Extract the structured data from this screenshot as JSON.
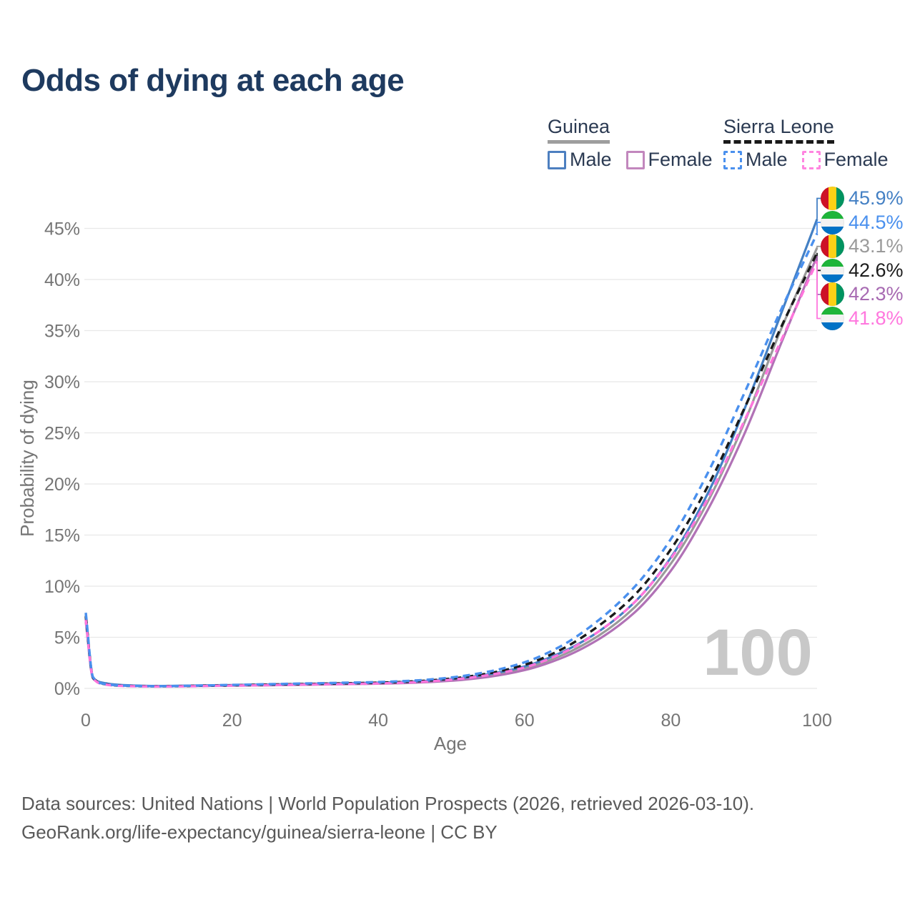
{
  "title": "Odds of dying at each age",
  "legend": {
    "groups": [
      {
        "name": "Guinea",
        "dashed": false,
        "underline_color": "#9e9e9e",
        "items": [
          {
            "label": "Male",
            "color": "#4d7fc0"
          },
          {
            "label": "Female",
            "color": "#c287bd"
          }
        ]
      },
      {
        "name": "Sierra Leone",
        "dashed": true,
        "underline_color": "#1a1a1a",
        "items": [
          {
            "label": "Male",
            "color": "#4a90ee"
          },
          {
            "label": "Female",
            "color": "#ff85e0"
          }
        ]
      }
    ]
  },
  "chart_data": {
    "type": "line",
    "title": "Odds of dying at each age",
    "xlabel": "Age",
    "ylabel": "Probability of dying",
    "x_ticks": [
      0,
      20,
      40,
      60,
      80,
      100
    ],
    "y_ticks": [
      "0%",
      "5%",
      "10%",
      "15%",
      "20%",
      "25%",
      "30%",
      "35%",
      "40%",
      "45%"
    ],
    "xlim": [
      0,
      100
    ],
    "ylim_percent": [
      0,
      47.5
    ],
    "grid": true,
    "legend_position": "top-right",
    "watermark": "100",
    "x": [
      0,
      1,
      2,
      5,
      10,
      15,
      20,
      25,
      30,
      35,
      40,
      45,
      50,
      55,
      60,
      65,
      70,
      75,
      80,
      85,
      90,
      95,
      100
    ],
    "series": [
      {
        "id": "guinea-both",
        "name": "Guinea",
        "country": "Guinea",
        "sex": "Both",
        "color": "#9a9a9a",
        "dashed": false,
        "end_label": "43.1%",
        "values": [
          6.85,
          1.0,
          0.58,
          0.31,
          0.22,
          0.25,
          0.3,
          0.35,
          0.4,
          0.45,
          0.51,
          0.62,
          0.83,
          1.25,
          1.96,
          3.2,
          5.1,
          7.9,
          12.2,
          18.2,
          25.9,
          35.0,
          43.1
        ]
      },
      {
        "id": "guinea-female",
        "name": "Guinea Female",
        "country": "Guinea",
        "sex": "Female",
        "color": "#b172b6",
        "dashed": false,
        "end_label": "42.3%",
        "values": [
          6.5,
          0.95,
          0.55,
          0.29,
          0.21,
          0.23,
          0.27,
          0.31,
          0.36,
          0.41,
          0.46,
          0.56,
          0.75,
          1.12,
          1.78,
          2.95,
          4.75,
          7.4,
          11.5,
          17.4,
          24.8,
          33.6,
          42.3
        ]
      },
      {
        "id": "guinea-male",
        "name": "Guinea Male",
        "country": "Guinea",
        "sex": "Male",
        "color": "#4480c4",
        "dashed": false,
        "end_label": "45.9%",
        "values": [
          7.2,
          1.05,
          0.6,
          0.33,
          0.24,
          0.28,
          0.33,
          0.38,
          0.44,
          0.5,
          0.56,
          0.68,
          0.92,
          1.38,
          2.15,
          3.5,
          5.5,
          8.4,
          12.8,
          19.0,
          27.2,
          36.5,
          45.9
        ]
      },
      {
        "id": "sierra-leone-both",
        "name": "Sierra Leone",
        "country": "Sierra Leone",
        "sex": "Both",
        "color": "#1a1a1a",
        "dashed": true,
        "end_label": "42.6%",
        "values": [
          7.05,
          1.05,
          0.5,
          0.26,
          0.2,
          0.25,
          0.3,
          0.37,
          0.43,
          0.49,
          0.56,
          0.69,
          0.96,
          1.46,
          2.3,
          3.8,
          6.05,
          9.1,
          13.6,
          19.7,
          27.3,
          35.2,
          42.6
        ]
      },
      {
        "id": "sierra-leone-female",
        "name": "Sierra Leone Female",
        "country": "Sierra Leone",
        "sex": "Female",
        "color": "#ff75dc",
        "dashed": true,
        "end_label": "41.8%",
        "values": [
          6.7,
          1.0,
          0.47,
          0.24,
          0.18,
          0.22,
          0.27,
          0.32,
          0.38,
          0.43,
          0.49,
          0.61,
          0.85,
          1.3,
          2.05,
          3.4,
          5.5,
          8.4,
          12.7,
          18.5,
          26.1,
          33.9,
          41.8
        ]
      },
      {
        "id": "sierra-leone-male",
        "name": "Sierra Leone Male",
        "country": "Sierra Leone",
        "sex": "Male",
        "color": "#4a90ee",
        "dashed": true,
        "end_label": "44.5%",
        "values": [
          7.4,
          1.1,
          0.52,
          0.28,
          0.22,
          0.27,
          0.34,
          0.41,
          0.48,
          0.55,
          0.62,
          0.77,
          1.07,
          1.63,
          2.55,
          4.15,
          6.6,
          9.9,
          14.6,
          21.0,
          28.8,
          36.9,
          44.5
        ]
      }
    ],
    "end_labels": [
      {
        "series": "guinea-male",
        "flag": "guinea",
        "value": "45.9%",
        "color": "#4480c4"
      },
      {
        "series": "sierra-leone-male",
        "flag": "sierra-leone",
        "value": "44.5%",
        "color": "#4a90ee"
      },
      {
        "series": "guinea-both",
        "flag": "guinea",
        "value": "43.1%",
        "color": "#9a9a9a"
      },
      {
        "series": "sierra-leone-both",
        "flag": "sierra-leone",
        "value": "42.6%",
        "color": "#1c1c1c"
      },
      {
        "series": "guinea-female",
        "flag": "guinea",
        "value": "42.3%",
        "color": "#a76ab2"
      },
      {
        "series": "sierra-leone-female",
        "flag": "sierra-leone",
        "value": "41.8%",
        "color": "#ff77de"
      }
    ]
  },
  "flags": {
    "guinea": {
      "orientation": "vertical",
      "colors": [
        "#ce1126",
        "#fcd116",
        "#009460"
      ]
    },
    "sierra-leone": {
      "orientation": "horizontal",
      "colors": [
        "#1eb53a",
        "#f2f2f2",
        "#0072c6"
      ]
    }
  },
  "colors": {
    "title": "#1e3a5f",
    "tick_labels": "#757575",
    "gridlines": "#e8e8e8",
    "watermark": "#c8c8c8",
    "footer": "#595959"
  },
  "footer": {
    "line1": "Data sources: United Nations | World Population Prospects (2026, retrieved 2026-03-10).",
    "line2": "GeoRank.org/life-expectancy/guinea/sierra-leone | CC BY"
  }
}
